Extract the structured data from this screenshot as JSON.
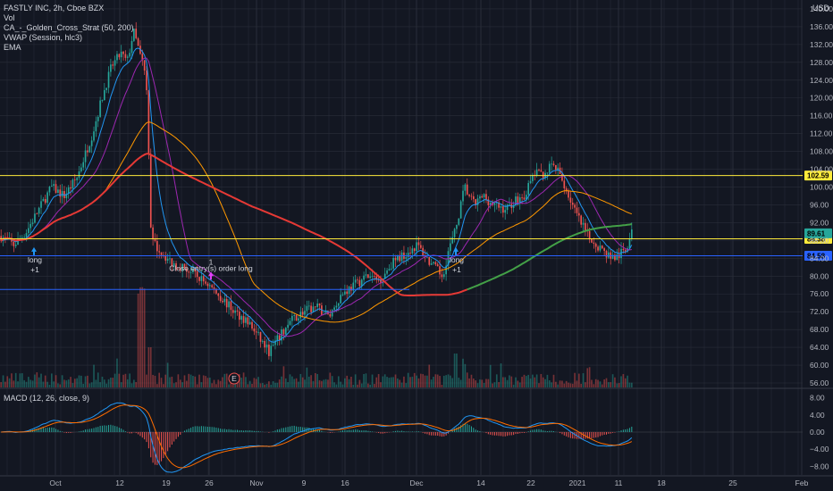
{
  "header": {
    "symbol_line": "FASTLY INC, 2h, Cboe BZX",
    "indicators": [
      "Vol",
      "CA_-_Golden_Cross_Strat (50, 200)",
      "VWAP (Session, hlc3)",
      "EMA"
    ],
    "currency": "USD"
  },
  "macd_legend": "MACD (12, 26, close, 9)",
  "colors": {
    "background": "#131722",
    "grid": "#2a2e39",
    "up": "#26a69a",
    "down": "#ef5350",
    "yellow_line": "#ffeb3b",
    "blue_line": "#2962ff",
    "ma_fast": "#9c27b0",
    "ma_slow": "#ff9800",
    "ma_200": "#e53935",
    "ma_200_up": "#43a047",
    "ema": "#2196f3",
    "macd": "#2196f3",
    "signal": "#ff6d00"
  },
  "chart_data": [
    {
      "type": "candlestick",
      "title": "FASTLY INC, 2h, Cboe BZX",
      "x_ticks": [
        "Oct",
        "12",
        "19",
        "26",
        "Nov",
        "9",
        "16",
        "Dec",
        "14",
        "22",
        "2021",
        "11",
        "18",
        "25",
        "Feb"
      ],
      "y_ticks": [
        56,
        60,
        64,
        68,
        72,
        76,
        80,
        84,
        88,
        92,
        96,
        100,
        104,
        108,
        112,
        116,
        120,
        124,
        128,
        132,
        136,
        140
      ],
      "ylim": [
        55,
        142
      ],
      "price_path": [
        [
          0,
          89
        ],
        [
          0.02,
          87
        ],
        [
          0.04,
          90
        ],
        [
          0.06,
          95
        ],
        [
          0.08,
          100
        ],
        [
          0.1,
          98
        ],
        [
          0.12,
          102
        ],
        [
          0.135,
          108
        ],
        [
          0.145,
          112
        ],
        [
          0.16,
          120
        ],
        [
          0.175,
          127
        ],
        [
          0.19,
          130
        ],
        [
          0.2,
          128
        ],
        [
          0.21,
          135
        ],
        [
          0.22,
          130
        ],
        [
          0.23,
          126
        ],
        [
          0.238,
          88
        ],
        [
          0.25,
          86
        ],
        [
          0.27,
          83
        ],
        [
          0.29,
          82
        ],
        [
          0.31,
          80
        ],
        [
          0.33,
          78
        ],
        [
          0.35,
          75
        ],
        [
          0.37,
          72
        ],
        [
          0.39,
          70
        ],
        [
          0.41,
          66
        ],
        [
          0.425,
          63
        ],
        [
          0.44,
          66
        ],
        [
          0.46,
          70
        ],
        [
          0.48,
          72
        ],
        [
          0.5,
          73
        ],
        [
          0.52,
          71
        ],
        [
          0.54,
          76
        ],
        [
          0.56,
          78
        ],
        [
          0.58,
          80
        ],
        [
          0.6,
          79
        ],
        [
          0.62,
          83
        ],
        [
          0.64,
          85
        ],
        [
          0.66,
          87
        ],
        [
          0.68,
          83
        ],
        [
          0.7,
          80
        ],
        [
          0.71,
          86
        ],
        [
          0.72,
          90
        ],
        [
          0.735,
          100
        ],
        [
          0.75,
          96
        ],
        [
          0.765,
          98
        ],
        [
          0.78,
          96
        ],
        [
          0.8,
          95
        ],
        [
          0.815,
          97
        ],
        [
          0.83,
          98
        ],
        [
          0.845,
          103
        ],
        [
          0.86,
          103
        ],
        [
          0.875,
          105
        ],
        [
          0.885,
          103
        ],
        [
          0.9,
          98
        ],
        [
          0.915,
          93
        ],
        [
          0.93,
          89
        ],
        [
          0.945,
          87
        ],
        [
          0.96,
          85
        ],
        [
          0.975,
          84
        ],
        [
          0.99,
          86
        ],
        [
          1.0,
          89.6
        ]
      ],
      "horizontal_levels": [
        {
          "price": 102.59,
          "label": "102.59",
          "color": "#ffeb3b"
        },
        {
          "price": 88.38,
          "label": "88.38",
          "color": "#ffeb3b"
        },
        {
          "price": 84.58,
          "label": "84.58",
          "color": "#2962ff"
        },
        {
          "price": 77.0,
          "label": "",
          "color": "#2962ff",
          "partial": true
        }
      ],
      "last_price": {
        "value": 89.61,
        "label": "89.61",
        "color": "#26a69a"
      },
      "annotations": [
        {
          "text": "long",
          "sub": "+1",
          "anchor": "first"
        },
        {
          "text": "Close entry(s) order long",
          "sub": "1",
          "anchor": "second"
        },
        {
          "text": "long",
          "sub": "+1",
          "anchor": "third"
        }
      ],
      "event_marker": "E"
    },
    {
      "type": "histogram",
      "title": "MACD (12, 26, close, 9)",
      "y_ticks": [
        8.0,
        4.0,
        0.0,
        -4.0,
        -8.0
      ],
      "y_tick_labels": [
        "8.00",
        "4.00",
        "0.00",
        "−4.00",
        "−8.00"
      ],
      "ylim": [
        -10,
        10
      ]
    }
  ]
}
